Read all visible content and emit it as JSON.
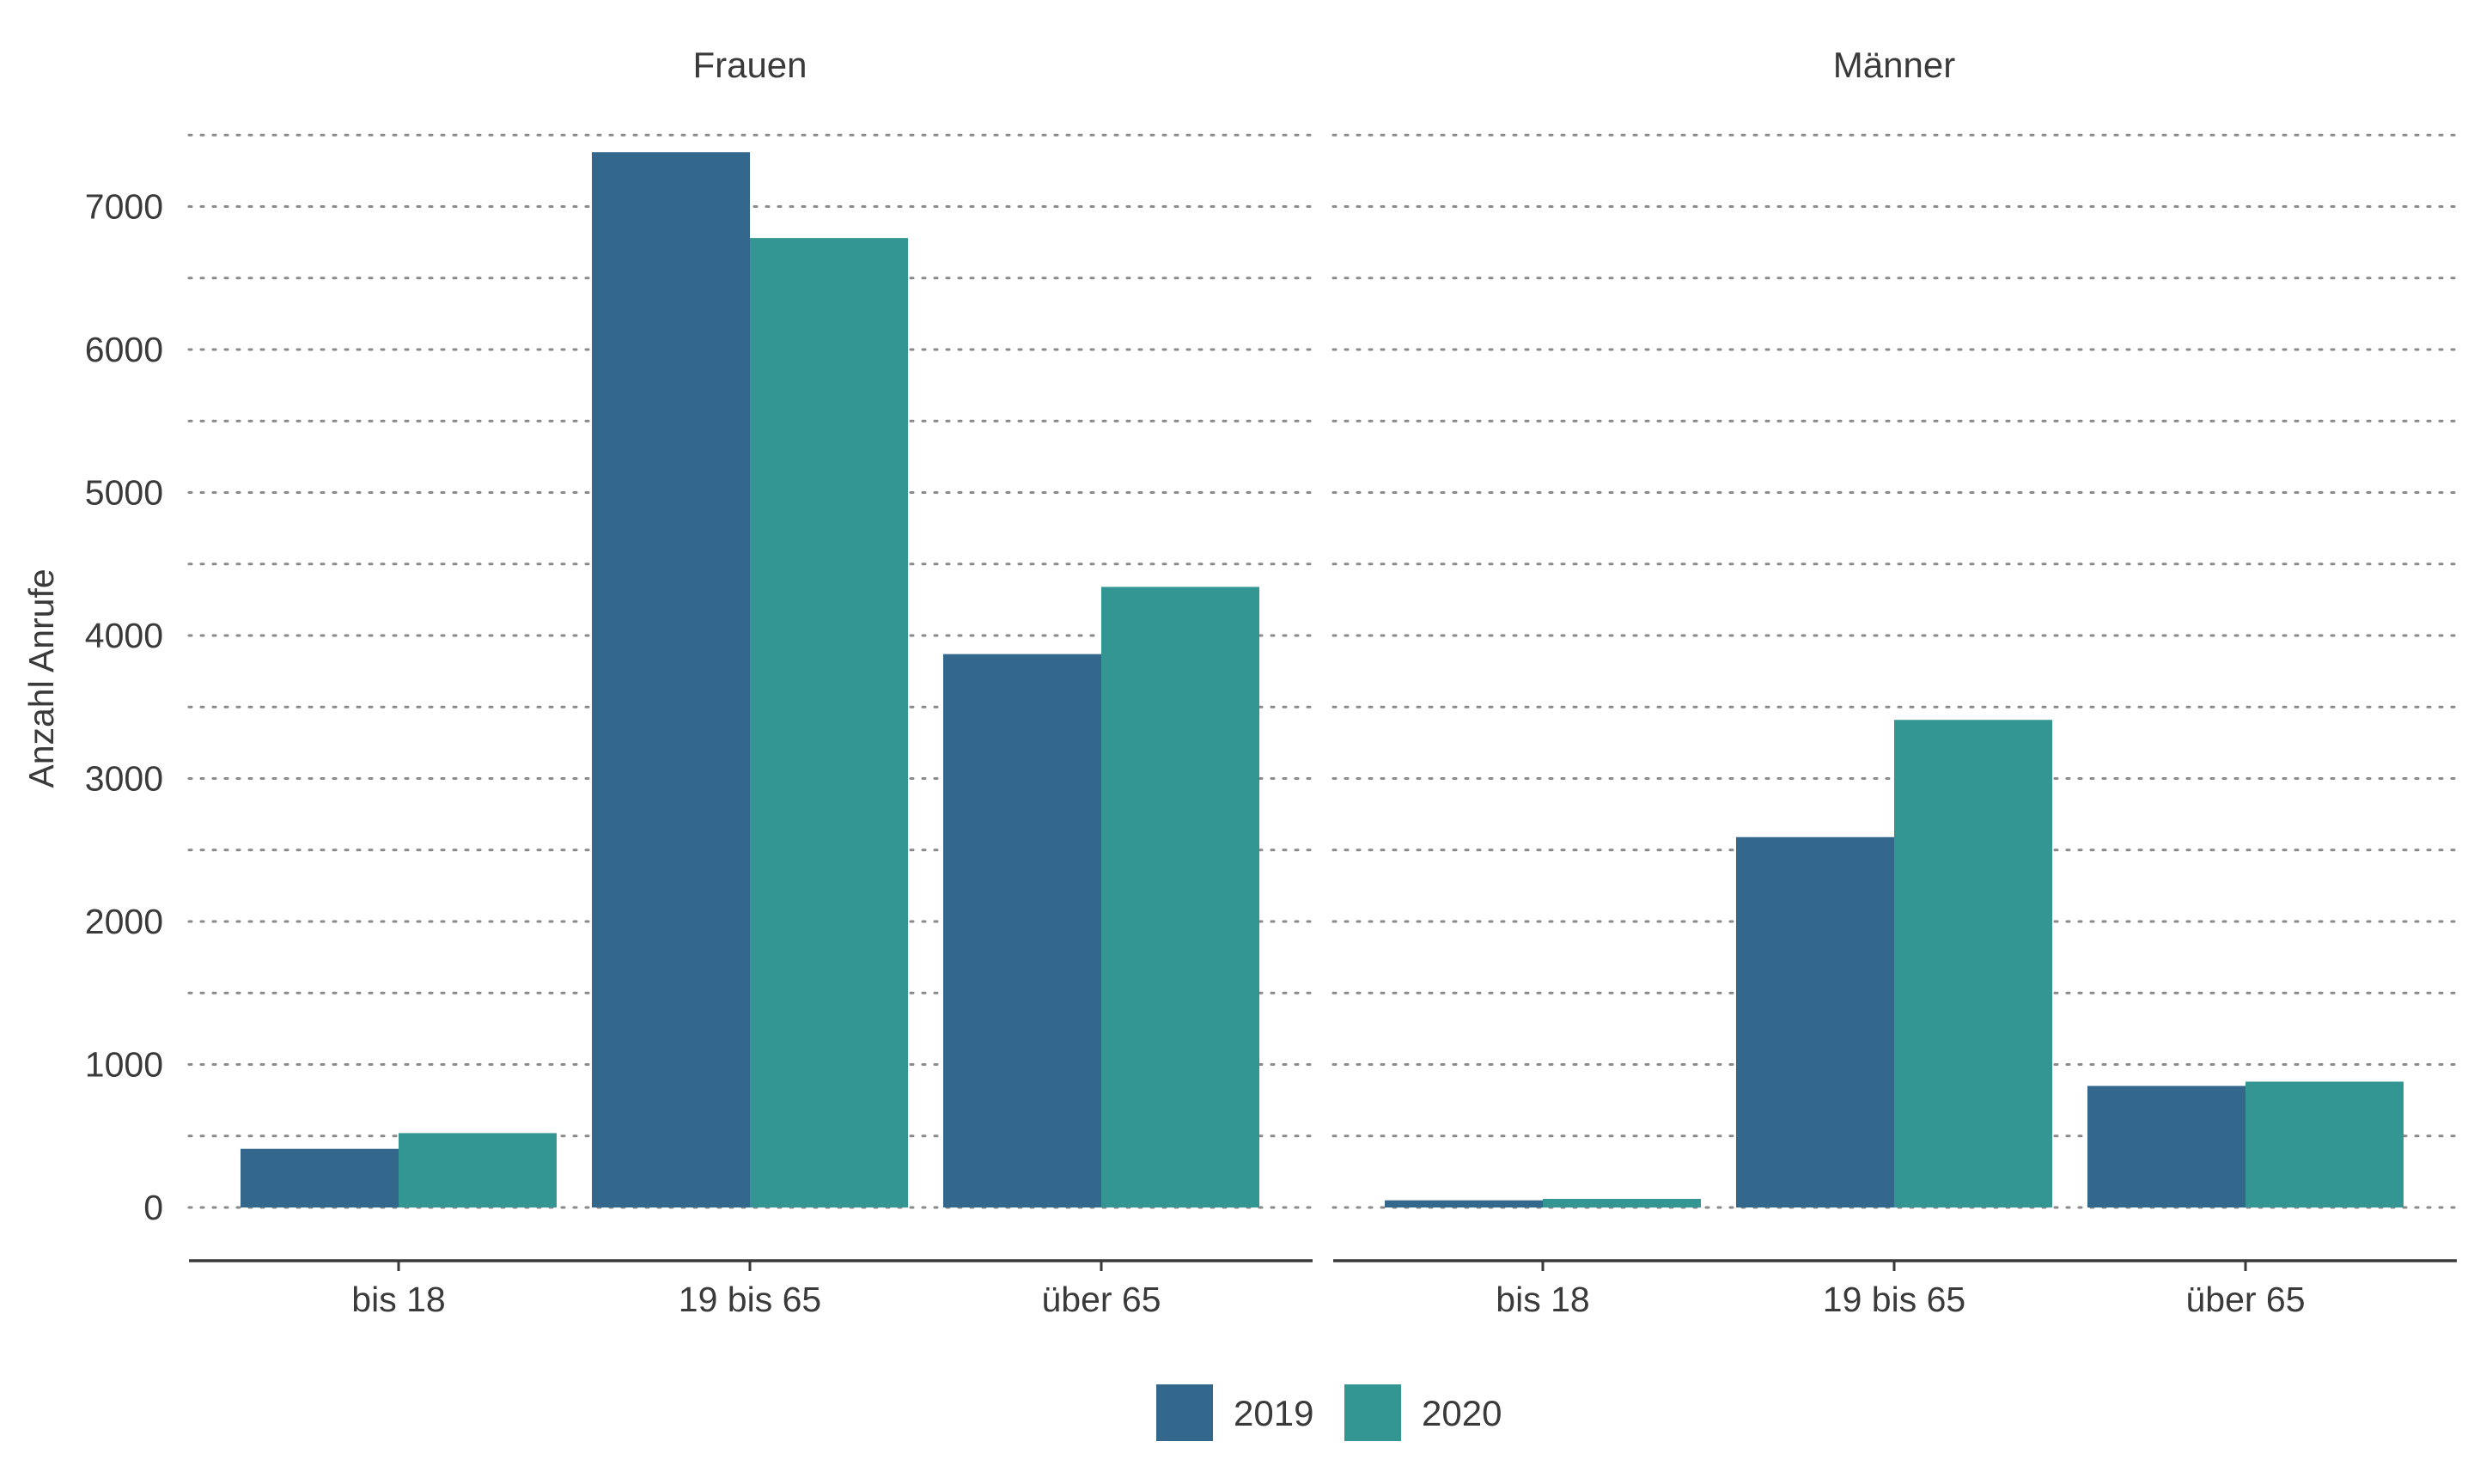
{
  "chart_data": {
    "type": "bar",
    "ylabel": "Anzahl Anrufe",
    "ylim": [
      0,
      7500
    ],
    "yticks": [
      "0",
      "1000",
      "2000",
      "3000",
      "4000",
      "5000",
      "6000",
      "7000"
    ],
    "categories": [
      "bis 18",
      "19 bis 65",
      "über 65"
    ],
    "grid": "dotted-horizontal",
    "legend_position": "bottom",
    "colors": {
      "2019": "#33678c",
      "2020": "#339692"
    },
    "panels": [
      {
        "name": "Frauen",
        "series": [
          {
            "name": "2019",
            "values": [
              410,
              7380,
              3870
            ]
          },
          {
            "name": "2020",
            "values": [
              520,
              6780,
              4340
            ]
          }
        ]
      },
      {
        "name": "Männer",
        "series": [
          {
            "name": "2019",
            "values": [
              50,
              2590,
              850
            ]
          },
          {
            "name": "2020",
            "values": [
              60,
              3410,
              880
            ]
          }
        ]
      }
    ],
    "legend": [
      "2019",
      "2020"
    ]
  }
}
